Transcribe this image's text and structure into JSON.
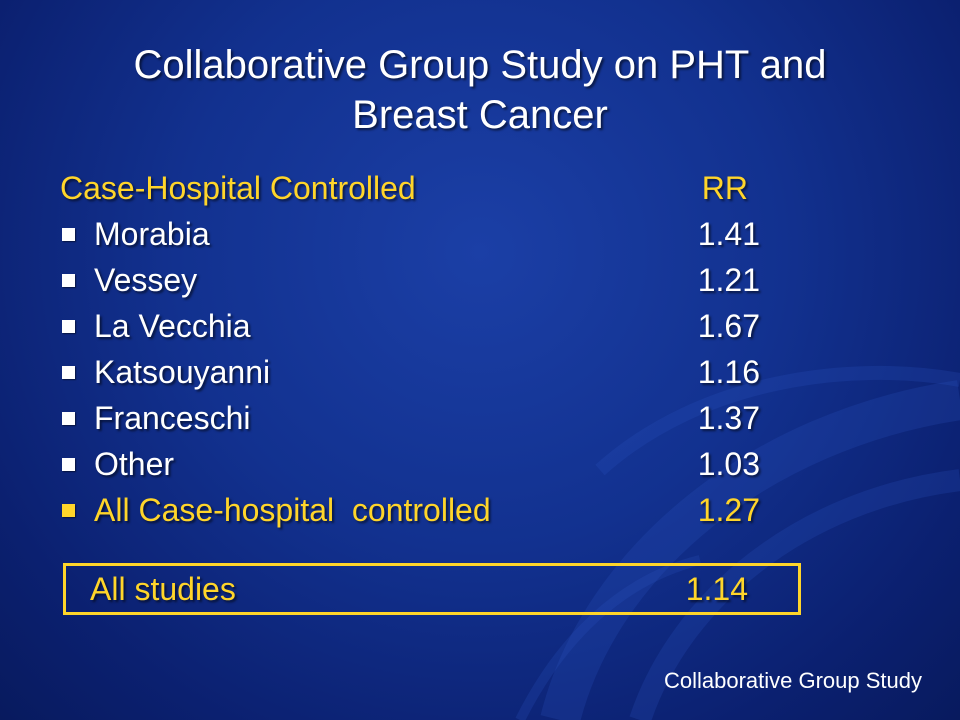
{
  "title": {
    "line1": "Collaborative Group Study on PHT and",
    "line2": "Breast Cancer"
  },
  "header": {
    "label": "Case-Hospital Controlled",
    "value_label": "RR"
  },
  "rows": [
    {
      "label": "Morabia",
      "value": "1.41"
    },
    {
      "label": "Vessey",
      "value": "1.21"
    },
    {
      "label": "La Vecchia",
      "value": "1.67"
    },
    {
      "label": "Katsouyanni",
      "value": "1.16"
    },
    {
      "label": "Franceschi",
      "value": "1.37"
    },
    {
      "label": "Other",
      "value": "1.03"
    },
    {
      "label": "All Case-hospital  controlled",
      "value": "1.27"
    }
  ],
  "summary": {
    "label": "All studies",
    "value": "1.14"
  },
  "footer": "Collaborative Group Study",
  "colors": {
    "background": "#12318f",
    "text": "#ffffff",
    "accent": "#ffd52a"
  }
}
